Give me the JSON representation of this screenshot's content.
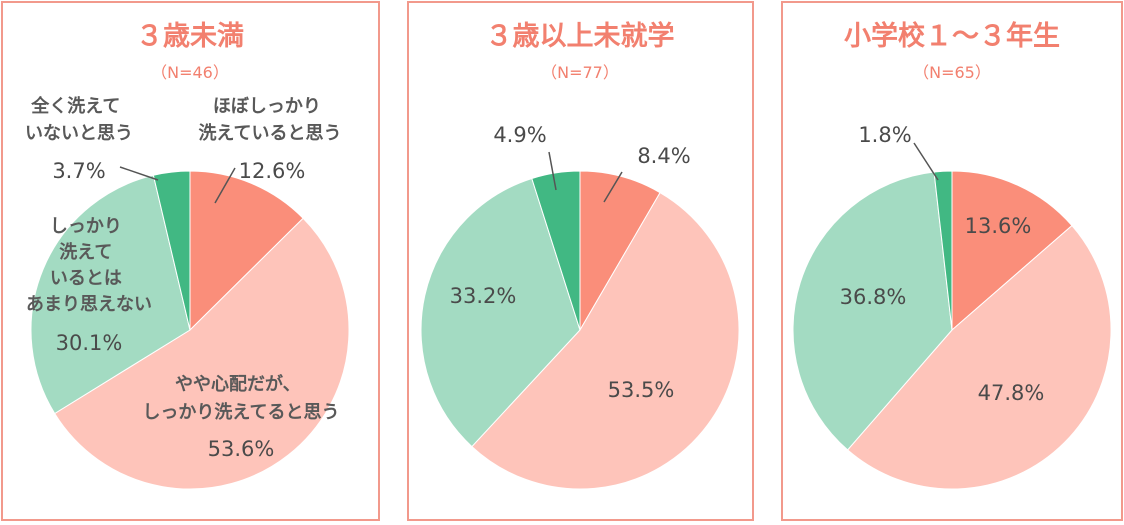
{
  "chart_data": [
    {
      "type": "pie",
      "title": "３歳未満",
      "subtitle": "（N=46）",
      "slices": [
        {
          "label_lines": [
            "ほぼしっかり",
            "洗えていると思う"
          ],
          "value": 12.6,
          "value_text": "12.6%",
          "color": "#fa8e7a"
        },
        {
          "label_lines": [
            "やや心配だが、",
            "しっかり洗えてると思う"
          ],
          "value": 53.6,
          "value_text": "53.6%",
          "color": "#fec4ba"
        },
        {
          "label_lines": [
            "しっかり",
            "洗えて",
            "いるとは",
            "あまり思えない"
          ],
          "value": 30.1,
          "value_text": "30.1%",
          "color": "#a3dbc2"
        },
        {
          "label_lines": [
            "全く洗えて",
            "いないと思う"
          ],
          "value": 3.7,
          "value_text": "3.7%",
          "color": "#41b883"
        }
      ]
    },
    {
      "type": "pie",
      "title": "３歳以上未就学",
      "subtitle": "（N=77）",
      "slices": [
        {
          "value": 8.4,
          "value_text": "8.4%",
          "color": "#fa8e7a"
        },
        {
          "value": 53.5,
          "value_text": "53.5%",
          "color": "#fec4ba"
        },
        {
          "value": 33.2,
          "value_text": "33.2%",
          "color": "#a3dbc2"
        },
        {
          "value": 4.9,
          "value_text": "4.9%",
          "color": "#41b883"
        }
      ]
    },
    {
      "type": "pie",
      "title": "小学校１～３年生",
      "subtitle": "（N=65）",
      "slices": [
        {
          "value": 13.6,
          "value_text": "13.6%",
          "color": "#fa8e7a"
        },
        {
          "value": 47.8,
          "value_text": "47.8%",
          "color": "#fec4ba"
        },
        {
          "value": 36.8,
          "value_text": "36.8%",
          "color": "#a3dbc2"
        },
        {
          "value": 1.8,
          "value_text": "1.8%",
          "color": "#41b883"
        }
      ]
    }
  ]
}
